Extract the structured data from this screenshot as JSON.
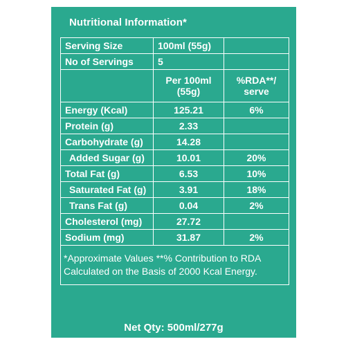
{
  "title": "Nutritional Information*",
  "serving": {
    "size_label": "Serving Size",
    "size_value": "100ml (55g)",
    "count_label": "No of Servings",
    "count_value": "5"
  },
  "table_header": {
    "per_line1": "Per 100ml",
    "per_line2": "(55g)",
    "rda_line1": "%RDA**/",
    "rda_line2": "serve"
  },
  "nutrients": [
    {
      "name": "Energy (Kcal)",
      "value": "125.21",
      "rda": "6%"
    },
    {
      "name": "Protein (g)",
      "value": "2.33",
      "rda": ""
    },
    {
      "name": "Carbohydrate (g)",
      "value": "14.28",
      "rda": ""
    },
    {
      "name": "Added Sugar (g)",
      "value": "10.01",
      "rda": "20%"
    },
    {
      "name": "Total Fat (g)",
      "value": "6.53",
      "rda": "10%"
    },
    {
      "name": "Saturated Fat (g)",
      "value": "3.91",
      "rda": "18%"
    },
    {
      "name": "Trans Fat (g)",
      "value": "0.04",
      "rda": "2%"
    },
    {
      "name": "Cholesterol (mg)",
      "value": "27.72",
      "rda": ""
    },
    {
      "name": "Sodium (mg)",
      "value": "31.87",
      "rda": "2%"
    }
  ],
  "footnote_line1": "*Approximate Values **% Contribution to RDA",
  "footnote_line2": "Calculated on the Basis of 2000 Kcal Energy.",
  "net_qty": "Net Qty: 500ml/277g",
  "colors": {
    "background": "#2aa98f",
    "text": "#ffffff"
  }
}
